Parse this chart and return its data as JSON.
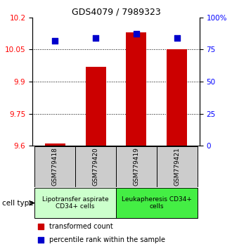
{
  "title": "GDS4079 / 7989323",
  "samples": [
    "GSM779418",
    "GSM779420",
    "GSM779419",
    "GSM779421"
  ],
  "transformed_counts": [
    9.61,
    9.97,
    10.13,
    10.05
  ],
  "percentile_ranks": [
    82,
    84,
    87,
    84
  ],
  "ymin": 9.6,
  "ymax": 10.2,
  "yticks": [
    9.6,
    9.75,
    9.9,
    10.05,
    10.2
  ],
  "ytick_labels": [
    "9.6",
    "9.75",
    "9.9",
    "10.05",
    "10.2"
  ],
  "right_yticks": [
    0,
    25,
    50,
    75,
    100
  ],
  "right_ytick_labels": [
    "0",
    "25",
    "50",
    "75",
    "100%"
  ],
  "bar_color": "#cc0000",
  "dot_color": "#0000cc",
  "cell_type_groups": [
    {
      "label": "Lipotransfer aspirate\nCD34+ cells",
      "color": "#ccffcc",
      "samples": [
        0,
        1
      ]
    },
    {
      "label": "Leukapheresis CD34+\ncells",
      "color": "#44ee44",
      "samples": [
        2,
        3
      ]
    }
  ],
  "cell_type_label": "cell type",
  "legend_bar_label": "transformed count",
  "legend_dot_label": "percentile rank within the sample",
  "sample_box_color": "#cccccc",
  "bar_width": 0.5,
  "dot_size": 40,
  "title_fontsize": 9,
  "tick_fontsize": 7.5,
  "sample_fontsize": 6.5,
  "group_fontsize": 6.5,
  "legend_fontsize": 7
}
